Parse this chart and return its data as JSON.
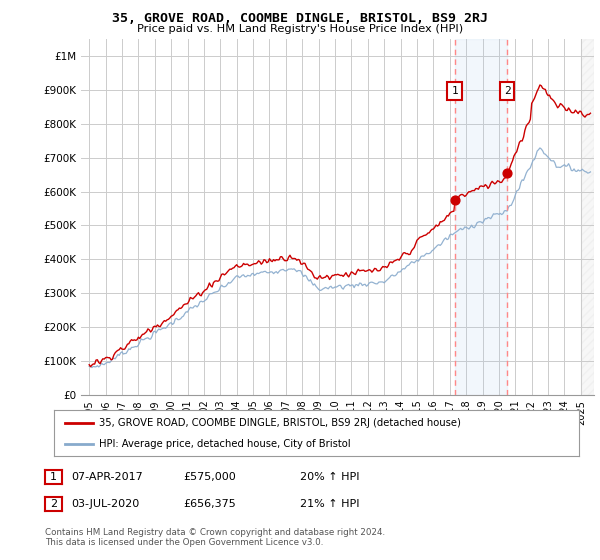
{
  "title": "35, GROVE ROAD, COOMBE DINGLE, BRISTOL, BS9 2RJ",
  "subtitle": "Price paid vs. HM Land Registry's House Price Index (HPI)",
  "ylim": [
    0,
    1050000
  ],
  "yticks": [
    0,
    100000,
    200000,
    300000,
    400000,
    500000,
    600000,
    700000,
    800000,
    900000,
    1000000
  ],
  "ytick_labels": [
    "£0",
    "£100K",
    "£200K",
    "£300K",
    "£400K",
    "£500K",
    "£600K",
    "£700K",
    "£800K",
    "£900K",
    "£1M"
  ],
  "line1_color": "#cc0000",
  "line2_color": "#88aacc",
  "sale1_date_x": 2017.3,
  "sale1_y": 575000,
  "sale2_date_x": 2020.5,
  "sale2_y": 656375,
  "vline1_x": 2017.3,
  "vline2_x": 2020.5,
  "legend_label1": "35, GROVE ROAD, COOMBE DINGLE, BRISTOL, BS9 2RJ (detached house)",
  "legend_label2": "HPI: Average price, detached house, City of Bristol",
  "note1_num": "1",
  "note1_date": "07-APR-2017",
  "note1_price": "£575,000",
  "note1_hpi": "20% ↑ HPI",
  "note2_num": "2",
  "note2_date": "03-JUL-2020",
  "note2_price": "£656,375",
  "note2_hpi": "21% ↑ HPI",
  "copyright_text": "Contains HM Land Registry data © Crown copyright and database right 2024.\nThis data is licensed under the Open Government Licence v3.0.",
  "background_color": "#ffffff",
  "grid_color": "#cccccc",
  "xlim_start": 1994.5,
  "xlim_end": 2025.8,
  "shade_color": "#ddeeff",
  "hatch_end": 2025.8,
  "xticks": [
    1995,
    1996,
    1997,
    1998,
    1999,
    2000,
    2001,
    2002,
    2003,
    2004,
    2005,
    2006,
    2007,
    2008,
    2009,
    2010,
    2011,
    2012,
    2013,
    2014,
    2015,
    2016,
    2017,
    2018,
    2019,
    2020,
    2021,
    2022,
    2023,
    2024,
    2025
  ]
}
